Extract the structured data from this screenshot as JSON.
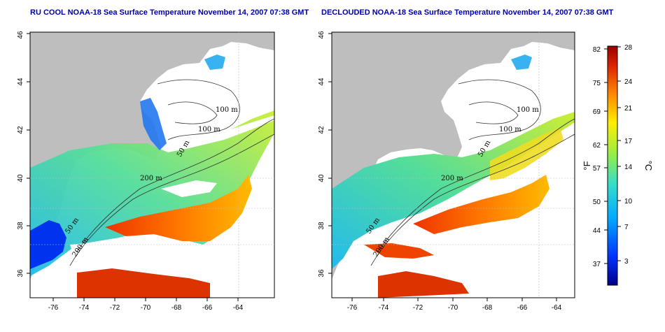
{
  "maps": [
    {
      "title": "RU COOL NOAA-18 Sea Surface Temperature November 14, 2007 07:38 GMT",
      "x_ticks": [
        "-76",
        "-74",
        "-72",
        "-70",
        "-68",
        "-66",
        "-64"
      ],
      "y_ticks": [
        "36",
        "38",
        "40",
        "42",
        "44",
        "46"
      ],
      "contour_labels": [
        "100 m",
        "100 m",
        "50 m",
        "200 m",
        "50 m",
        "200 m"
      ]
    },
    {
      "title": "DECLOUDED NOAA-18 Sea Surface Temperature November 14, 2007 07:38 GMT",
      "x_ticks": [
        "-76",
        "-74",
        "-72",
        "-70",
        "-68",
        "-66",
        "-64"
      ],
      "y_ticks": [
        "36",
        "38",
        "40",
        "42",
        "44",
        "46"
      ],
      "contour_labels": [
        "100 m",
        "100 m",
        "50 m",
        "200 m",
        "50 m",
        "200 m"
      ]
    }
  ],
  "colorbar": {
    "fahrenheit_ticks": [
      "82",
      "75",
      "69",
      "62",
      "57",
      "50",
      "44",
      "37"
    ],
    "celsius_ticks": [
      "28",
      "24",
      "21",
      "17",
      "14",
      "10",
      "7",
      "3"
    ],
    "fahrenheit_label": "°F",
    "celsius_label": "°C",
    "colors": [
      "#00008b",
      "#0033ff",
      "#00aaff",
      "#33ddcc",
      "#99ee44",
      "#ffee00",
      "#ff8800",
      "#dd2200",
      "#990000"
    ]
  },
  "colors": {
    "land": "#bebebe",
    "cloud": "#ffffff",
    "title": "#0000aa"
  }
}
